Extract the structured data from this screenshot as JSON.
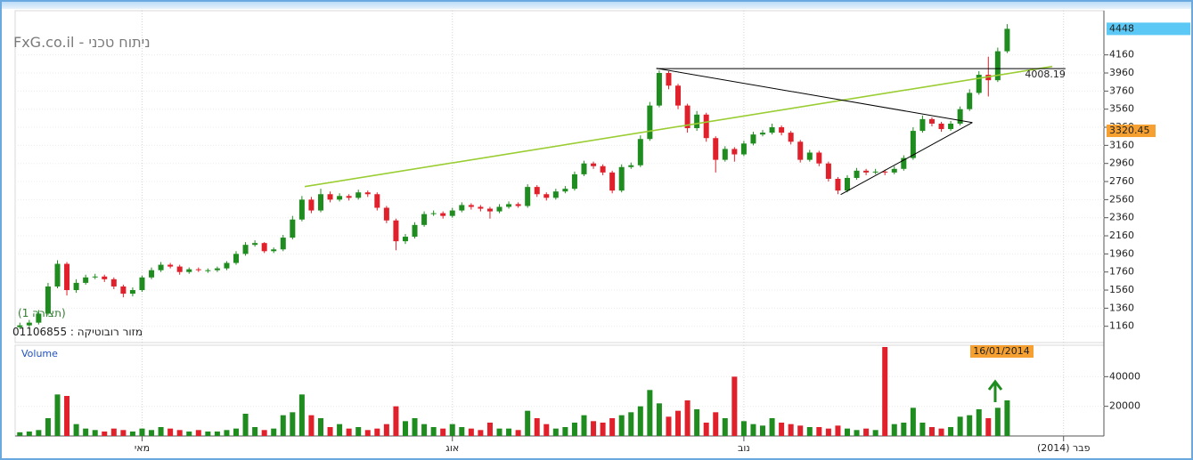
{
  "header": {
    "title": "ניתוח טכני - FxG.co.il",
    "pattern_label": "(תצורה 1)",
    "instrument": "מזור רובוטיקה : 01106855"
  },
  "chart_data": [
    {
      "type": "candlestick",
      "xlim": [
        -0.5,
        115.1
      ],
      "xticks": [
        {
          "value": 13,
          "label": "מאי"
        },
        {
          "value": 46,
          "label": "אוג"
        },
        {
          "value": 77,
          "label": "נוב"
        },
        {
          "value": 111,
          "label": "פבר (2014)"
        }
      ],
      "ylim": [
        980,
        4570
      ],
      "yticks": [
        1160,
        1360,
        1560,
        1760,
        1960,
        2160,
        2360,
        2560,
        2760,
        2960,
        3160,
        3360,
        3560,
        3760,
        3960,
        4160
      ],
      "grid": true,
      "up_color": "#1e8c1e",
      "down_color": "#e0202a",
      "open": [
        1150,
        1170,
        1200,
        1300,
        1600,
        1850,
        1560,
        1640,
        1700,
        1710,
        1680,
        1600,
        1520,
        1560,
        1700,
        1780,
        1840,
        1820,
        1760,
        1790,
        1770,
        1780,
        1800,
        1860,
        1960,
        2060,
        2080,
        1990,
        2010,
        2140,
        2340,
        2560,
        2440,
        2620,
        2560,
        2600,
        2580,
        2640,
        2620,
        2470,
        2330,
        2100,
        2150,
        2280,
        2400,
        2410,
        2380,
        2440,
        2500,
        2480,
        2460,
        2430,
        2480,
        2510,
        2490,
        2700,
        2620,
        2580,
        2650,
        2680,
        2840,
        2960,
        2930,
        2860,
        2660,
        2920,
        2940,
        3230,
        3600,
        3960,
        3820,
        3600,
        3350,
        3500,
        3240,
        3000,
        3120,
        3060,
        3180,
        3280,
        3300,
        3360,
        3300,
        3200,
        3000,
        3080,
        2960,
        2790,
        2660,
        2800,
        2880,
        2860,
        2870,
        2860,
        2900,
        3020,
        3320,
        3450,
        3400,
        3340,
        3400,
        3560,
        3740,
        3940,
        3880,
        4200
      ],
      "high": [
        1200,
        1230,
        1340,
        1640,
        1890,
        1870,
        1680,
        1730,
        1740,
        1730,
        1700,
        1620,
        1590,
        1720,
        1810,
        1870,
        1860,
        1840,
        1810,
        1810,
        1800,
        1820,
        1880,
        1990,
        2090,
        2110,
        2090,
        2030,
        2170,
        2380,
        2600,
        2590,
        2680,
        2650,
        2630,
        2620,
        2670,
        2660,
        2640,
        2490,
        2350,
        2180,
        2310,
        2430,
        2440,
        2430,
        2470,
        2530,
        2520,
        2500,
        2480,
        2510,
        2540,
        2530,
        2730,
        2720,
        2640,
        2680,
        2710,
        2870,
        2990,
        2980,
        2950,
        2880,
        2950,
        2970,
        3270,
        3640,
        3990,
        3980,
        3840,
        3620,
        3540,
        3520,
        3260,
        3150,
        3140,
        3210,
        3310,
        3330,
        3400,
        3380,
        3320,
        3220,
        3110,
        3100,
        2980,
        2810,
        2830,
        2910,
        2900,
        2900,
        2890,
        2930,
        3050,
        3360,
        3490,
        3470,
        3420,
        3430,
        3590,
        3780,
        3980,
        4140,
        4240,
        4500
      ],
      "low": [
        1130,
        1150,
        1180,
        1280,
        1580,
        1500,
        1530,
        1620,
        1680,
        1650,
        1570,
        1480,
        1490,
        1540,
        1680,
        1760,
        1800,
        1730,
        1740,
        1760,
        1750,
        1760,
        1780,
        1840,
        1940,
        2040,
        1970,
        1970,
        1990,
        2120,
        2320,
        2410,
        2420,
        2530,
        2540,
        2550,
        2560,
        2590,
        2440,
        2300,
        2000,
        2070,
        2130,
        2260,
        2380,
        2350,
        2360,
        2420,
        2450,
        2430,
        2350,
        2410,
        2460,
        2470,
        2470,
        2590,
        2550,
        2560,
        2630,
        2660,
        2820,
        2900,
        2830,
        2630,
        2640,
        2900,
        2920,
        3210,
        3580,
        3780,
        3560,
        3300,
        3320,
        3200,
        2860,
        2980,
        2980,
        3040,
        3160,
        3260,
        3280,
        3270,
        3170,
        2970,
        2980,
        2930,
        2760,
        2620,
        2640,
        2780,
        2830,
        2840,
        2830,
        2840,
        2880,
        3000,
        3300,
        3370,
        3310,
        3320,
        3380,
        3540,
        3720,
        3700,
        3860,
        4180
      ],
      "close": [
        1170,
        1200,
        1300,
        1600,
        1850,
        1560,
        1640,
        1700,
        1710,
        1680,
        1600,
        1520,
        1560,
        1700,
        1780,
        1840,
        1820,
        1760,
        1790,
        1780,
        1780,
        1800,
        1860,
        1960,
        2060,
        2080,
        1990,
        2010,
        2140,
        2340,
        2560,
        2440,
        2620,
        2560,
        2600,
        2580,
        2640,
        2620,
        2470,
        2330,
        2100,
        2150,
        2280,
        2400,
        2410,
        2380,
        2440,
        2500,
        2480,
        2460,
        2430,
        2480,
        2510,
        2490,
        2700,
        2620,
        2580,
        2650,
        2680,
        2840,
        2960,
        2930,
        2860,
        2660,
        2920,
        2940,
        3230,
        3600,
        3960,
        3820,
        3600,
        3350,
        3500,
        3240,
        3000,
        3120,
        3060,
        3180,
        3280,
        3300,
        3360,
        3300,
        3200,
        3000,
        3080,
        2960,
        2790,
        2660,
        2800,
        2880,
        2860,
        2870,
        2860,
        2900,
        3020,
        3320,
        3450,
        3400,
        3340,
        3400,
        3560,
        3740,
        3940,
        3880,
        4200,
        4448
      ],
      "markers": [
        {
          "value": 4448,
          "color": "#5bc8f5"
        },
        {
          "value": 3320.45,
          "color": "#f5a030"
        }
      ],
      "hline": {
        "value": 4008.19,
        "from": 67.7,
        "to": 111.2,
        "color": "#000000"
      },
      "trendlines": [
        {
          "from": [
            30.3,
            2704
          ],
          "to": [
            109.8,
            4032
          ],
          "color": "#9acd32"
        },
        {
          "from": [
            67.7,
            4012
          ],
          "to": [
            101.3,
            3412
          ],
          "color": "#000000"
        },
        {
          "from": [
            87.3,
            2616
          ],
          "to": [
            101.3,
            3412
          ],
          "color": "#000000"
        }
      ],
      "date_marker": "16/01/2014"
    },
    {
      "type": "bar",
      "title": "Volume",
      "values": [
        2500,
        3000,
        4000,
        12000,
        28000,
        27000,
        8000,
        5000,
        4000,
        3000,
        5000,
        4000,
        3000,
        5000,
        4000,
        6000,
        5000,
        4000,
        3000,
        4000,
        3000,
        3000,
        4000,
        5000,
        15000,
        6000,
        4000,
        5000,
        14000,
        16000,
        28000,
        14000,
        12000,
        6000,
        8000,
        5000,
        6000,
        4000,
        5000,
        8000,
        20000,
        10000,
        12000,
        8000,
        6000,
        5000,
        8000,
        6000,
        5000,
        4000,
        9000,
        5000,
        5000,
        4000,
        17000,
        12000,
        8000,
        5000,
        6000,
        9000,
        14000,
        10000,
        9000,
        12000,
        14000,
        16000,
        20000,
        31000,
        22000,
        13000,
        17000,
        24000,
        18000,
        9000,
        16000,
        12000,
        40000,
        10000,
        8000,
        7000,
        12000,
        9000,
        8000,
        7000,
        6000,
        6000,
        5000,
        7000,
        5000,
        4000,
        5000,
        4000,
        60000,
        8000,
        9000,
        19000,
        9000,
        6000,
        5000,
        6000,
        13000,
        14000,
        18000,
        12000,
        19000,
        24000
      ],
      "ylim": [
        0,
        60600
      ],
      "yticks": [
        20000,
        40000
      ],
      "grid": true
    }
  ]
}
